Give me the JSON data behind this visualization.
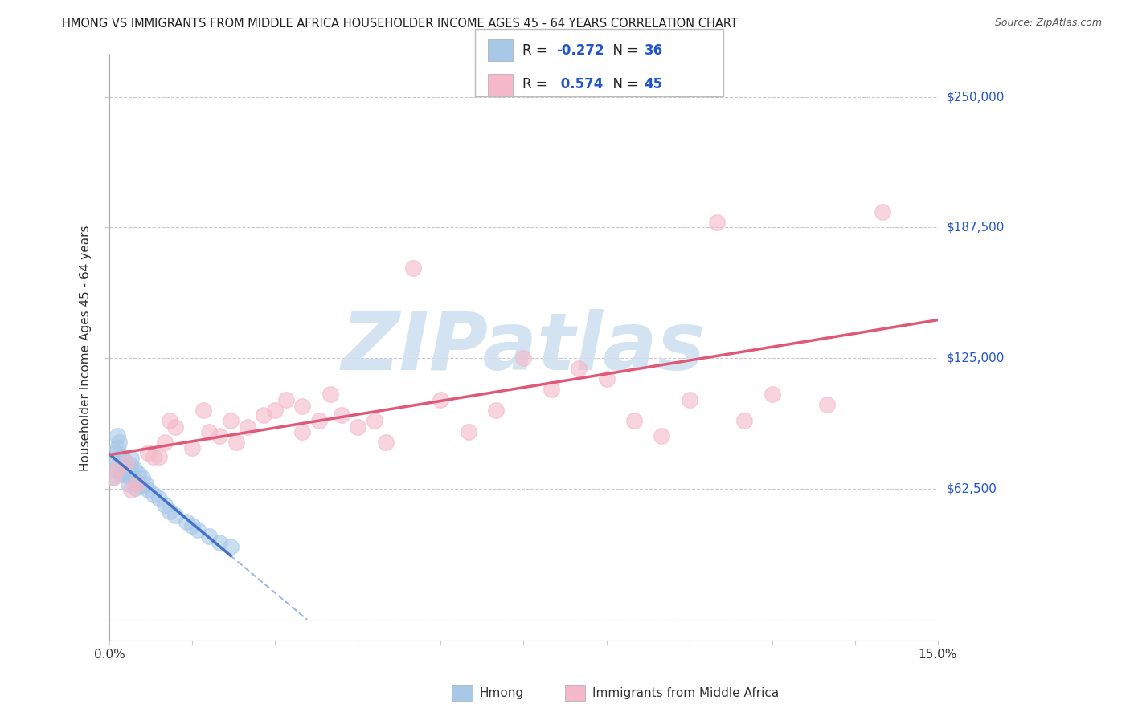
{
  "title": "HMONG VS IMMIGRANTS FROM MIDDLE AFRICA HOUSEHOLDER INCOME AGES 45 - 64 YEARS CORRELATION CHART",
  "source": "Source: ZipAtlas.com",
  "ylabel": "Householder Income Ages 45 - 64 years",
  "xlim": [
    0.0,
    15.0
  ],
  "ylim": [
    -10000,
    270000
  ],
  "yticks": [
    0,
    62500,
    125000,
    187500,
    250000
  ],
  "ytick_labels": [
    "",
    "$62,500",
    "$125,000",
    "$187,500",
    "$250,000"
  ],
  "hmong_color": "#a8c8e8",
  "middle_africa_color": "#f4b8c8",
  "hmong_line_color": "#4472c4",
  "middle_africa_line_color": "#e05878",
  "hmong_R": -0.272,
  "hmong_N": 36,
  "middle_africa_R": 0.574,
  "middle_africa_N": 45,
  "background_color": "#ffffff",
  "grid_color": "#c8c8c8",
  "watermark": "ZIPatlas",
  "watermark_color": "#d0e0f0",
  "legend_label1": "Hmong",
  "legend_label2": "Immigrants from Middle Africa",
  "hmong_scatter_x": [
    0.05,
    0.08,
    0.1,
    0.12,
    0.15,
    0.18,
    0.2,
    0.22,
    0.25,
    0.28,
    0.3,
    0.32,
    0.35,
    0.38,
    0.4,
    0.42,
    0.45,
    0.48,
    0.5,
    0.52,
    0.55,
    0.6,
    0.65,
    0.7,
    0.8,
    0.9,
    1.0,
    1.1,
    1.2,
    1.4,
    1.5,
    1.6,
    1.8,
    2.0,
    2.2,
    0.15
  ],
  "hmong_scatter_y": [
    68000,
    72000,
    75000,
    80000,
    82000,
    85000,
    70000,
    78000,
    73000,
    76000,
    69000,
    71000,
    65000,
    74000,
    77000,
    68000,
    72000,
    63000,
    66000,
    70000,
    64000,
    68000,
    65000,
    62000,
    60000,
    58000,
    55000,
    52000,
    50000,
    47000,
    45000,
    43000,
    40000,
    37000,
    35000,
    88000
  ],
  "middle_africa_scatter_x": [
    0.08,
    0.15,
    0.3,
    0.5,
    0.7,
    0.9,
    1.0,
    1.2,
    1.5,
    1.8,
    2.0,
    2.2,
    2.5,
    2.8,
    3.0,
    3.2,
    3.5,
    3.8,
    4.0,
    4.2,
    4.5,
    4.8,
    5.0,
    5.5,
    6.0,
    6.5,
    7.0,
    7.5,
    8.0,
    8.5,
    9.0,
    9.5,
    10.0,
    10.5,
    11.0,
    11.5,
    12.0,
    13.0,
    14.0,
    0.4,
    0.8,
    1.1,
    1.7,
    2.3,
    3.5
  ],
  "middle_africa_scatter_y": [
    68000,
    72000,
    75000,
    65000,
    80000,
    78000,
    85000,
    92000,
    82000,
    90000,
    88000,
    95000,
    92000,
    98000,
    100000,
    105000,
    102000,
    95000,
    108000,
    98000,
    92000,
    95000,
    85000,
    168000,
    105000,
    90000,
    100000,
    125000,
    110000,
    120000,
    115000,
    95000,
    88000,
    105000,
    190000,
    95000,
    108000,
    103000,
    195000,
    62000,
    78000,
    95000,
    100000,
    85000,
    90000
  ]
}
